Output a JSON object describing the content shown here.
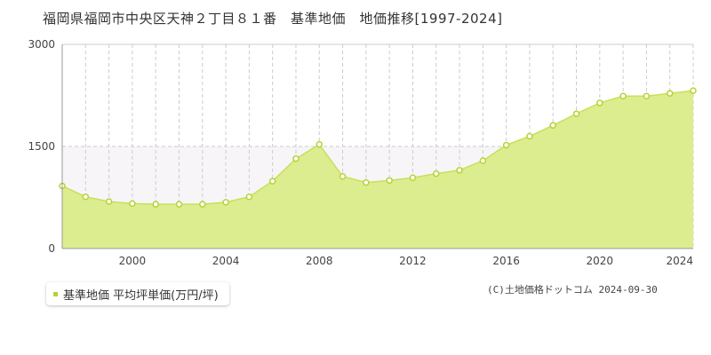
{
  "title": "福岡県福岡市中央区天神２丁目８１番　基準地価　地価推移[1997-2024]",
  "legend": {
    "label": "基準地価 平均坪単価(万円/坪)"
  },
  "copyright": "(C)土地価格ドットコム 2024-09-30",
  "colors": {
    "area_fill": "#dbed8f",
    "line": "#c8e05a",
    "point_fill": "#ffffff",
    "point_stroke": "#b5d334",
    "band": "#f7f5f8",
    "grid": "#cccccc"
  },
  "chart_data": {
    "type": "area",
    "title": "福岡県福岡市中央区天神２丁目８１番　基準地価　地価推移[1997-2024]",
    "xlabel": "",
    "ylabel": "",
    "xlim": [
      1997,
      2024
    ],
    "ylim": [
      0,
      3000
    ],
    "x_ticks": [
      "2000",
      "2004",
      "2008",
      "2012",
      "2016",
      "2020",
      "2024"
    ],
    "y_ticks": [
      "0",
      "1500",
      "3000"
    ],
    "grid": true,
    "legend_position": "bottom-left",
    "series": [
      {
        "name": "基準地価 平均坪単価(万円/坪)",
        "x": [
          1997,
          1998,
          1999,
          2000,
          2001,
          2002,
          2003,
          2004,
          2005,
          2006,
          2007,
          2008,
          2009,
          2010,
          2011,
          2012,
          2013,
          2014,
          2015,
          2016,
          2017,
          2018,
          2019,
          2020,
          2021,
          2022,
          2023,
          2024
        ],
        "values": [
          920,
          760,
          690,
          660,
          650,
          650,
          650,
          680,
          760,
          990,
          1320,
          1530,
          1060,
          970,
          1000,
          1040,
          1100,
          1150,
          1290,
          1520,
          1650,
          1810,
          1980,
          2140,
          2240,
          2240,
          2280,
          2320
        ]
      }
    ]
  }
}
